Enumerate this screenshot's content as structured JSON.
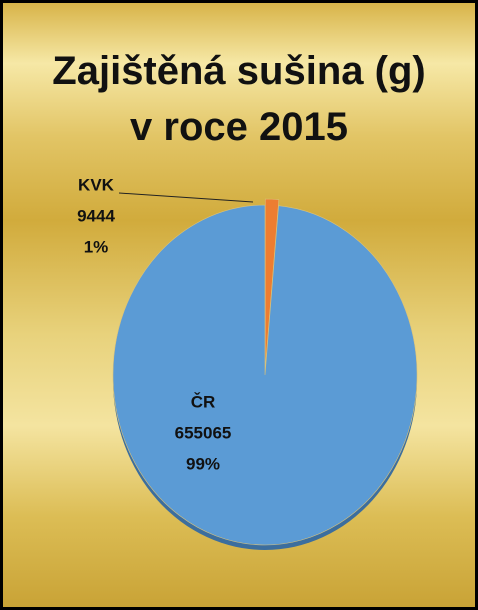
{
  "chart_data": {
    "type": "pie",
    "title": "Zajištěná sušina (g) v roce 2015",
    "categories": [
      "KVK",
      "ČR"
    ],
    "values": [
      9444,
      655065
    ],
    "percent_labels": [
      "1%",
      "99%"
    ],
    "colors": [
      "#ed7d31",
      "#5b9bd5"
    ]
  }
}
